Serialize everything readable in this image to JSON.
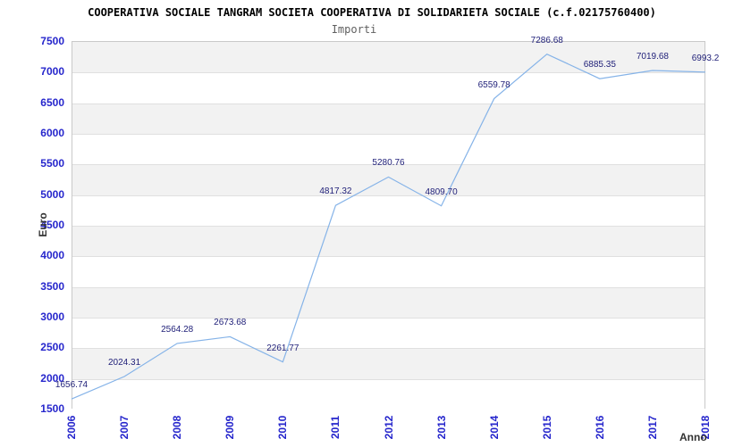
{
  "header": {
    "title": "COOPERATIVA SOCIALE TANGRAM SOCIETA COOPERATIVA DI SOLIDARIETA SOCIALE (c.f.02175760400)",
    "subtitle": "Importi"
  },
  "chart_data": {
    "type": "line",
    "title": "Importi",
    "xlabel": "Anno",
    "ylabel": "Euro",
    "categories": [
      "2006",
      "2007",
      "2008",
      "2009",
      "2010",
      "2011",
      "2012",
      "2013",
      "2014",
      "2015",
      "2016",
      "2017",
      "2018"
    ],
    "values": [
      1656.74,
      2024.31,
      2564.28,
      2673.68,
      2261.77,
      4817.32,
      5280.76,
      4809.7,
      6559.78,
      7286.68,
      6885.35,
      7019.68,
      6993.2
    ],
    "point_labels": [
      "1656.74",
      "2024.31",
      "2564.28",
      "2673.68",
      "2261.77",
      "4817.32",
      "5280.76",
      "4809.70",
      "6559.78",
      "7286.68",
      "6885.35",
      "7019.68",
      "6993.2"
    ],
    "ylim": [
      1500,
      7500
    ],
    "y_ticks": [
      1500,
      2000,
      2500,
      3000,
      3500,
      4000,
      4500,
      5000,
      5500,
      6000,
      6500,
      7000,
      7500
    ],
    "grid": true,
    "legend": "none",
    "colors": {
      "line": "#85b3e8",
      "tick_labels": "#2626cc",
      "point_labels": "#22227a",
      "axis_titles": "#333333",
      "band_gray": "#f2f2f2",
      "band_white": "#ffffff",
      "gridline": "#e0e0e0",
      "plot_border": "#c9c9c9"
    }
  }
}
